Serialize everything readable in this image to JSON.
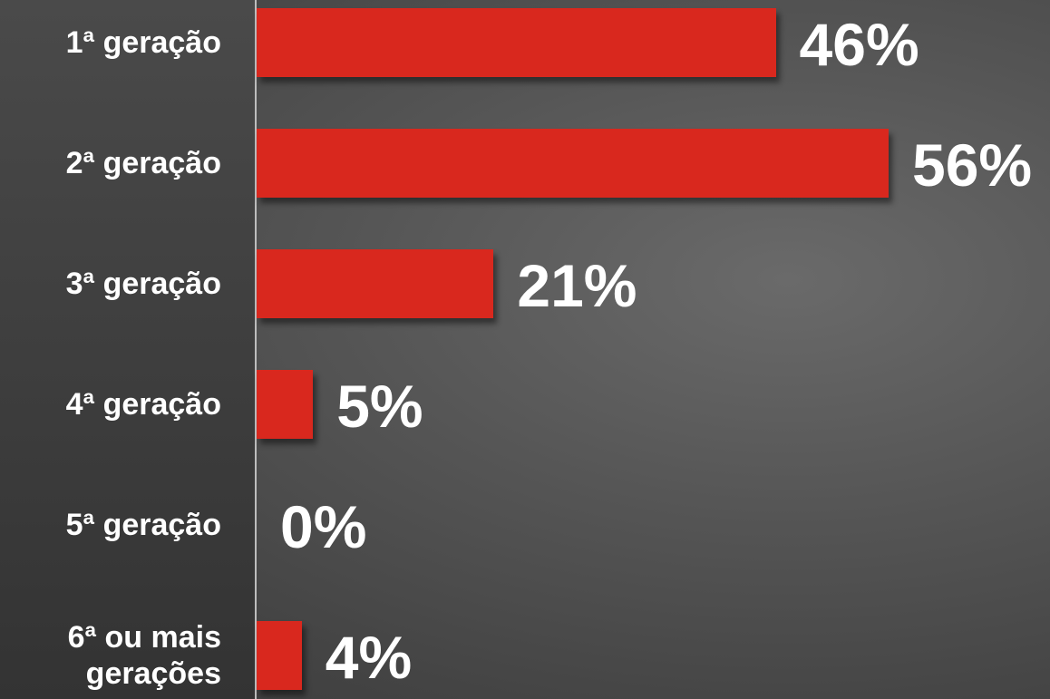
{
  "chart_data": {
    "type": "bar",
    "orientation": "horizontal",
    "categories": [
      "1ª geração",
      "2ª geração",
      "3ª geração",
      "4ª geração",
      "5ª geração",
      "6ª ou mais gerações"
    ],
    "values": [
      46,
      56,
      21,
      5,
      0,
      4
    ],
    "value_labels": [
      "46%",
      "56%",
      "21%",
      "5%",
      "0%",
      "4%"
    ],
    "color": "#d9281e"
  }
}
